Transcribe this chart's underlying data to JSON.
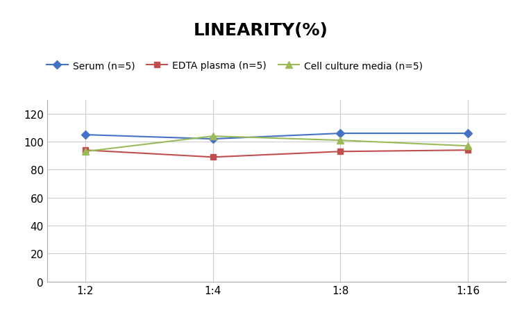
{
  "title": "LINEARITY(%)",
  "x_labels": [
    "1:2",
    "1:4",
    "1:8",
    "1:16"
  ],
  "x_positions": [
    0,
    1,
    2,
    3
  ],
  "series": [
    {
      "name": "Serum (n=5)",
      "values": [
        105,
        102,
        106,
        106
      ],
      "color": "#4472C4",
      "marker": "D",
      "markersize": 6,
      "linewidth": 1.5
    },
    {
      "name": "EDTA plasma (n=5)",
      "values": [
        94,
        89,
        93,
        94
      ],
      "color": "#C0504D",
      "marker": "s",
      "markersize": 6,
      "linewidth": 1.5
    },
    {
      "name": "Cell culture media (n=5)",
      "values": [
        93,
        104,
        101,
        97
      ],
      "color": "#9BBB59",
      "marker": "^",
      "markersize": 7,
      "linewidth": 1.5
    }
  ],
  "ylim": [
    0,
    130
  ],
  "yticks": [
    0,
    20,
    40,
    60,
    80,
    100,
    120
  ],
  "background_color": "#ffffff",
  "grid_color": "#cccccc",
  "title_fontsize": 18,
  "legend_fontsize": 10,
  "tick_fontsize": 11,
  "title_fontweight": "bold"
}
